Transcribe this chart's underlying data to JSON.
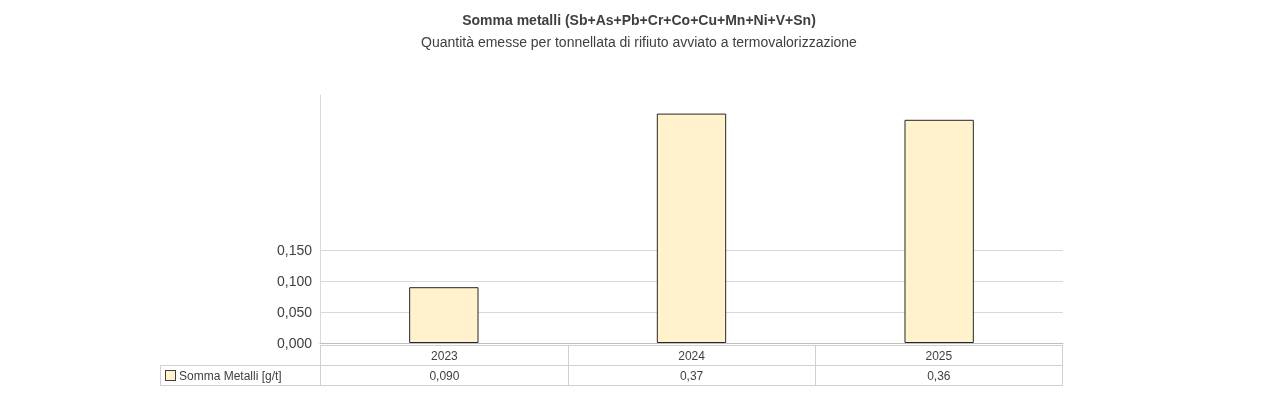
{
  "chart_data": {
    "type": "bar",
    "title": "Somma metalli (Sb+As+Pb+Cr+Co+Cu+Mn+Ni+V+Sn)",
    "subtitle": "Quantità emesse per tonnellata di rifiuto avviato a termovalorizzazione",
    "categories": [
      "2023",
      "2024",
      "2025"
    ],
    "series": [
      {
        "name": "Somma Metalli [g/t]",
        "color": "#fff2cc",
        "values": [
          0.09,
          0.37,
          0.36
        ],
        "value_labels": [
          "0,090",
          "0,37",
          "0,36"
        ]
      }
    ],
    "ylim": [
      0,
      0.4
    ],
    "yticks": [
      {
        "value": 0,
        "label": "0,000"
      },
      {
        "value": 0.05,
        "label": "0,050"
      },
      {
        "value": 0.1,
        "label": "0,100"
      },
      {
        "value": 0.15,
        "label": "0,150"
      }
    ],
    "grid": "y"
  }
}
